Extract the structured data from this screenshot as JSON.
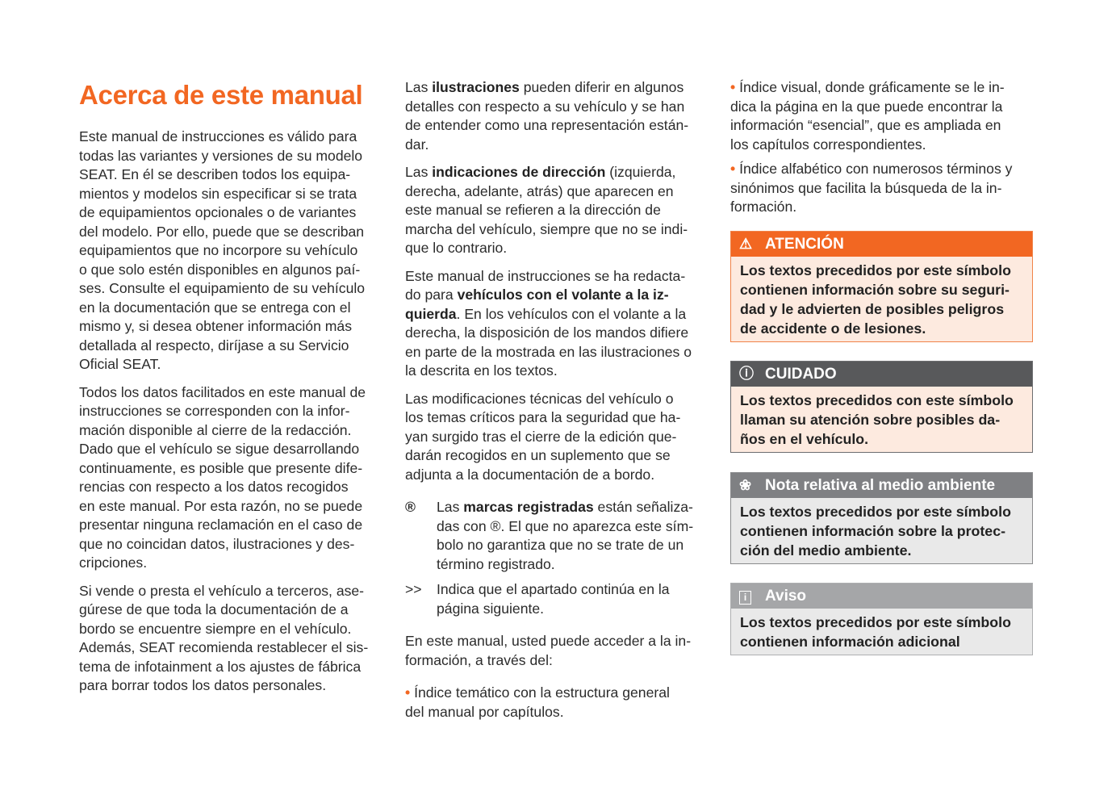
{
  "title": "Acerca de este manual",
  "col1": [
    "Este manual de instrucciones es válido para\ntodas las variantes y versiones de su modelo\nSEAT. En él se describen todos los equipa-\nmientos y modelos sin especificar si se trata\nde equipamientos opcionales o de variantes\ndel modelo. Por ello, puede que se describan\nequipamientos que no incorpore su vehículo\no que solo estén disponibles en algunos paí-\nses. Consulte el equipamiento de su vehículo\nen la documentación que se entrega con el\nmismo y, si desea obtener información más\ndetallada al respecto, diríjase a su Servicio\nOficial SEAT.",
    "Todos los datos facilitados en este manual de\ninstrucciones se corresponden con la infor-\nmación disponible al cierre de la redacción.\nDado que el vehículo se sigue desarrollando\ncontinuamente, es posible que presente dife-\nrencias con respecto a los datos recogidos\nen este manual. Por esta razón, no se puede\npresentar ninguna reclamación en el caso de\nque no coincidan datos, ilustraciones y des-\ncripciones.",
    "Si vende o presta el vehículo a terceros, ase-\ngúrese de que toda la documentación de a\nbordo se encuentre siempre en el vehículo.\nAdemás, SEAT recomienda restablecer el sis-\ntema de infotainment a los ajustes de fábrica\npara borrar todos los datos personales."
  ],
  "col2": {
    "p1": [
      "Las ",
      "ilustraciones",
      " pueden diferir en algunos\ndetalles con respecto a su vehículo y se han\nde entender como una representación están-\ndar."
    ],
    "p2": [
      "Las ",
      "indicaciones de dirección",
      " (izquierda,\nderecha, adelante, atrás) que aparecen en\neste manual se refieren a la dirección de\nmarcha del vehículo, siempre que no se indi-\nque lo contrario."
    ],
    "p3": [
      "Este manual de instrucciones se ha redacta-\ndo para ",
      "vehículos con el volante a la iz-\nquierda",
      ". En los vehículos con el volante a la\nderecha, la disposición de los mandos difiere\nen parte de la mostrada en las ilustraciones o\nla descrita en los textos."
    ],
    "p4": "Las modificaciones técnicas del vehículo o\nlos temas críticos para la seguridad que ha-\nyan surgido tras el cierre de la edición que-\ndarán recogidos en un suplemento que se\nadjunta a la documentación de a bordo.",
    "sym1": {
      "icon": "®",
      "parts": [
        "Las ",
        "marcas registradas",
        " están señaliza-\ndas con ®. El que no aparezca este sím-\nbolo no garantiza que no se trate de un\ntérmino registrado."
      ]
    },
    "sym2": {
      "icon": ">>",
      "text": "Indica que el apartado continúa en la\npágina siguiente."
    },
    "p5": "En este manual, usted puede acceder a la in-\nformación, a través del:",
    "bullet1": "Índice temático con la estructura general\ndel manual por capítulos."
  },
  "col3": {
    "bullet_symbol": "•",
    "bullets": [
      "Índice visual, donde gráficamente se le in-\ndica la página en la que puede encontrar la\ninformación “esencial”, que es ampliada en\nlos capítulos correspondientes.",
      "Índice alfabético con numerosos términos y\nsinónimos que facilita la búsqueda de la in-\nformación."
    ]
  },
  "boxes": [
    {
      "icon": "warning-triangle",
      "glyph": "⚠",
      "title": "ATENCIÓN",
      "text": "Los textos precedidos por este símbolo\ncontienen información sobre su seguri-\ndad y le advierten de posibles peligros\nde accidente o de lesiones.",
      "header": "#f26722",
      "body": "#fdeadf",
      "border": "#f0844a"
    },
    {
      "icon": "exclamation-circle",
      "glyph": "ⓘ",
      "title": "CUIDADO",
      "text": "Los textos precedidos con este símbolo\nllaman su atención sobre posibles da-\nños en el vehículo.",
      "header": "#58595b",
      "body": "#fdeadf",
      "border": "#6d6e70"
    },
    {
      "icon": "flower",
      "glyph": "❀",
      "title": "Nota relativa al medio ambiente",
      "text": "Los textos precedidos por este símbolo\ncontienen información sobre la protec-\nción del medio ambiente.",
      "header": "#7f8083",
      "body": "#e9e9e9",
      "border": "#8a8b8d"
    },
    {
      "icon": "info-square",
      "glyph": "🛈",
      "title": "Aviso",
      "text": "Los textos precedidos por este símbolo\ncontienen información adicional",
      "header": "#a5a6a8",
      "body": "#e9e9e9",
      "border": "#aeafb1"
    }
  ]
}
